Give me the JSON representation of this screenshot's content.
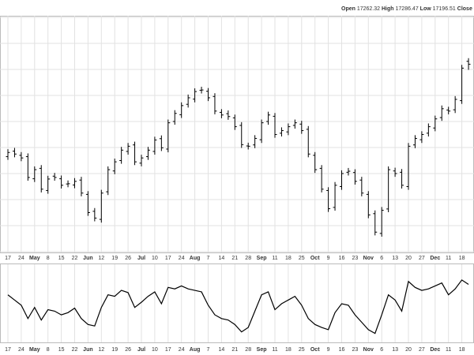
{
  "chart_data": {
    "type": "ohlc",
    "categories": [
      "17",
      null,
      "24",
      null,
      "May",
      null,
      "8",
      null,
      "15",
      null,
      "22",
      null,
      "Jun",
      null,
      "12",
      null,
      "19",
      null,
      "26",
      null,
      "Jul",
      null,
      "10",
      null,
      "17",
      null,
      "24",
      null,
      "Aug",
      null,
      "7",
      null,
      "14",
      null,
      "21",
      null,
      "28",
      null,
      "Sep",
      null,
      "11",
      null,
      "18",
      null,
      "25",
      null,
      "Oct",
      null,
      "9",
      null,
      "16",
      null,
      "23",
      null,
      "Nov",
      null,
      "6",
      null,
      "13",
      null,
      "20",
      null,
      "27",
      null,
      "Dec",
      null,
      "11",
      null,
      "18",
      null
    ],
    "ohlc_labels": [
      "Open",
      "High",
      "Low",
      "Close"
    ],
    "open": [
      16530,
      16572,
      16540,
      16530,
      16360,
      16440,
      16270,
      16380,
      16360,
      16320,
      16312,
      16350,
      16240,
      16110,
      16048,
      16260,
      16420,
      16500,
      16570,
      16620,
      16480,
      16530,
      16570,
      16668,
      16588,
      16800,
      16852,
      16932,
      16972,
      17040,
      17032,
      16992,
      16870,
      16860,
      16828,
      16770,
      16612,
      16620,
      16660,
      16800,
      16840,
      16710,
      16720,
      16770,
      16780,
      16740,
      16540,
      16440,
      16270,
      16140,
      16300,
      16410,
      16408,
      16350,
      16240,
      16092,
      15940,
      16128,
      16420,
      16410,
      16300,
      16620,
      16660,
      16710,
      16750,
      16830,
      16888,
      16890,
      16960,
      17262.32
    ],
    "high": [
      16587,
      16597,
      16565,
      16555,
      16455,
      16465,
      16383,
      16405,
      16385,
      16347,
      16365,
      16375,
      16265,
      16135,
      16275,
      16455,
      16515,
      16605,
      16635,
      16645,
      16545,
      16605,
      16683,
      16693,
      16815,
      16887,
      16947,
      17007,
      17055,
      17067,
      17057,
      17017,
      16895,
      16885,
      16853,
      16795,
      16637,
      16695,
      16815,
      16875,
      16865,
      16755,
      16785,
      16815,
      16805,
      16765,
      16565,
      16465,
      16295,
      16335,
      16425,
      16443,
      16433,
      16375,
      16265,
      16117,
      16143,
      16455,
      16445,
      16435,
      16635,
      16695,
      16725,
      16785,
      16845,
      16923,
      16913,
      16995,
      17235,
      17286.47
    ],
    "low": [
      16505,
      16525,
      16495,
      16345,
      16335,
      16255,
      16245,
      16345,
      16285,
      16295,
      16287,
      16225,
      16075,
      16033,
      16023,
      16235,
      16395,
      16475,
      16545,
      16465,
      16455,
      16505,
      16545,
      16573,
      16563,
      16775,
      16827,
      16907,
      16947,
      17015,
      16957,
      16855,
      16825,
      16813,
      16735,
      16597,
      16585,
      16595,
      16635,
      16775,
      16675,
      16685,
      16695,
      16745,
      16705,
      16525,
      16405,
      16255,
      16105,
      16115,
      16275,
      16385,
      16315,
      16225,
      16057,
      15925,
      15915,
      16103,
      16375,
      16285,
      16275,
      16595,
      16635,
      16685,
      16725,
      16805,
      16855,
      16865,
      16935,
      17196.51
    ],
    "close": [
      16562,
      16550,
      16520,
      16370,
      16430,
      16280,
      16358,
      16370,
      16310,
      16322,
      16340,
      16250,
      16100,
      16058,
      16250,
      16430,
      16490,
      16580,
      16610,
      16490,
      16520,
      16580,
      16658,
      16598,
      16790,
      16862,
      16922,
      16982,
      17030,
      17042,
      16982,
      16880,
      16850,
      16838,
      16760,
      16622,
      16610,
      16670,
      16790,
      16850,
      16700,
      16730,
      16760,
      16790,
      16730,
      16550,
      16430,
      16280,
      16130,
      16310,
      16400,
      16418,
      16340,
      16250,
      16082,
      15950,
      16118,
      16430,
      16400,
      16310,
      16610,
      16670,
      16700,
      16760,
      16820,
      16898,
      16880,
      16970,
      17210,
      17240
    ],
    "color": "#000000",
    "ylim": [
      15800,
      17600
    ],
    "yticks": [
      15800,
      16000,
      16200,
      16400,
      16600,
      16800,
      17000,
      17200,
      17400,
      17600
    ],
    "grid": true,
    "indicator": {
      "ylim": [
        0,
        100
      ],
      "color": "#000000",
      "values": [
        62,
        55,
        48,
        30,
        45,
        28,
        42,
        40,
        35,
        38,
        44,
        30,
        22,
        20,
        45,
        62,
        60,
        68,
        65,
        45,
        52,
        60,
        66,
        50,
        72,
        70,
        74,
        70,
        68,
        66,
        48,
        35,
        30,
        28,
        22,
        12,
        18,
        40,
        62,
        66,
        42,
        50,
        55,
        60,
        48,
        30,
        22,
        18,
        15,
        38,
        50,
        48,
        35,
        25,
        15,
        10,
        35,
        62,
        55,
        40,
        80,
        72,
        68,
        70,
        74,
        78,
        62,
        70,
        82,
        76
      ]
    }
  }
}
